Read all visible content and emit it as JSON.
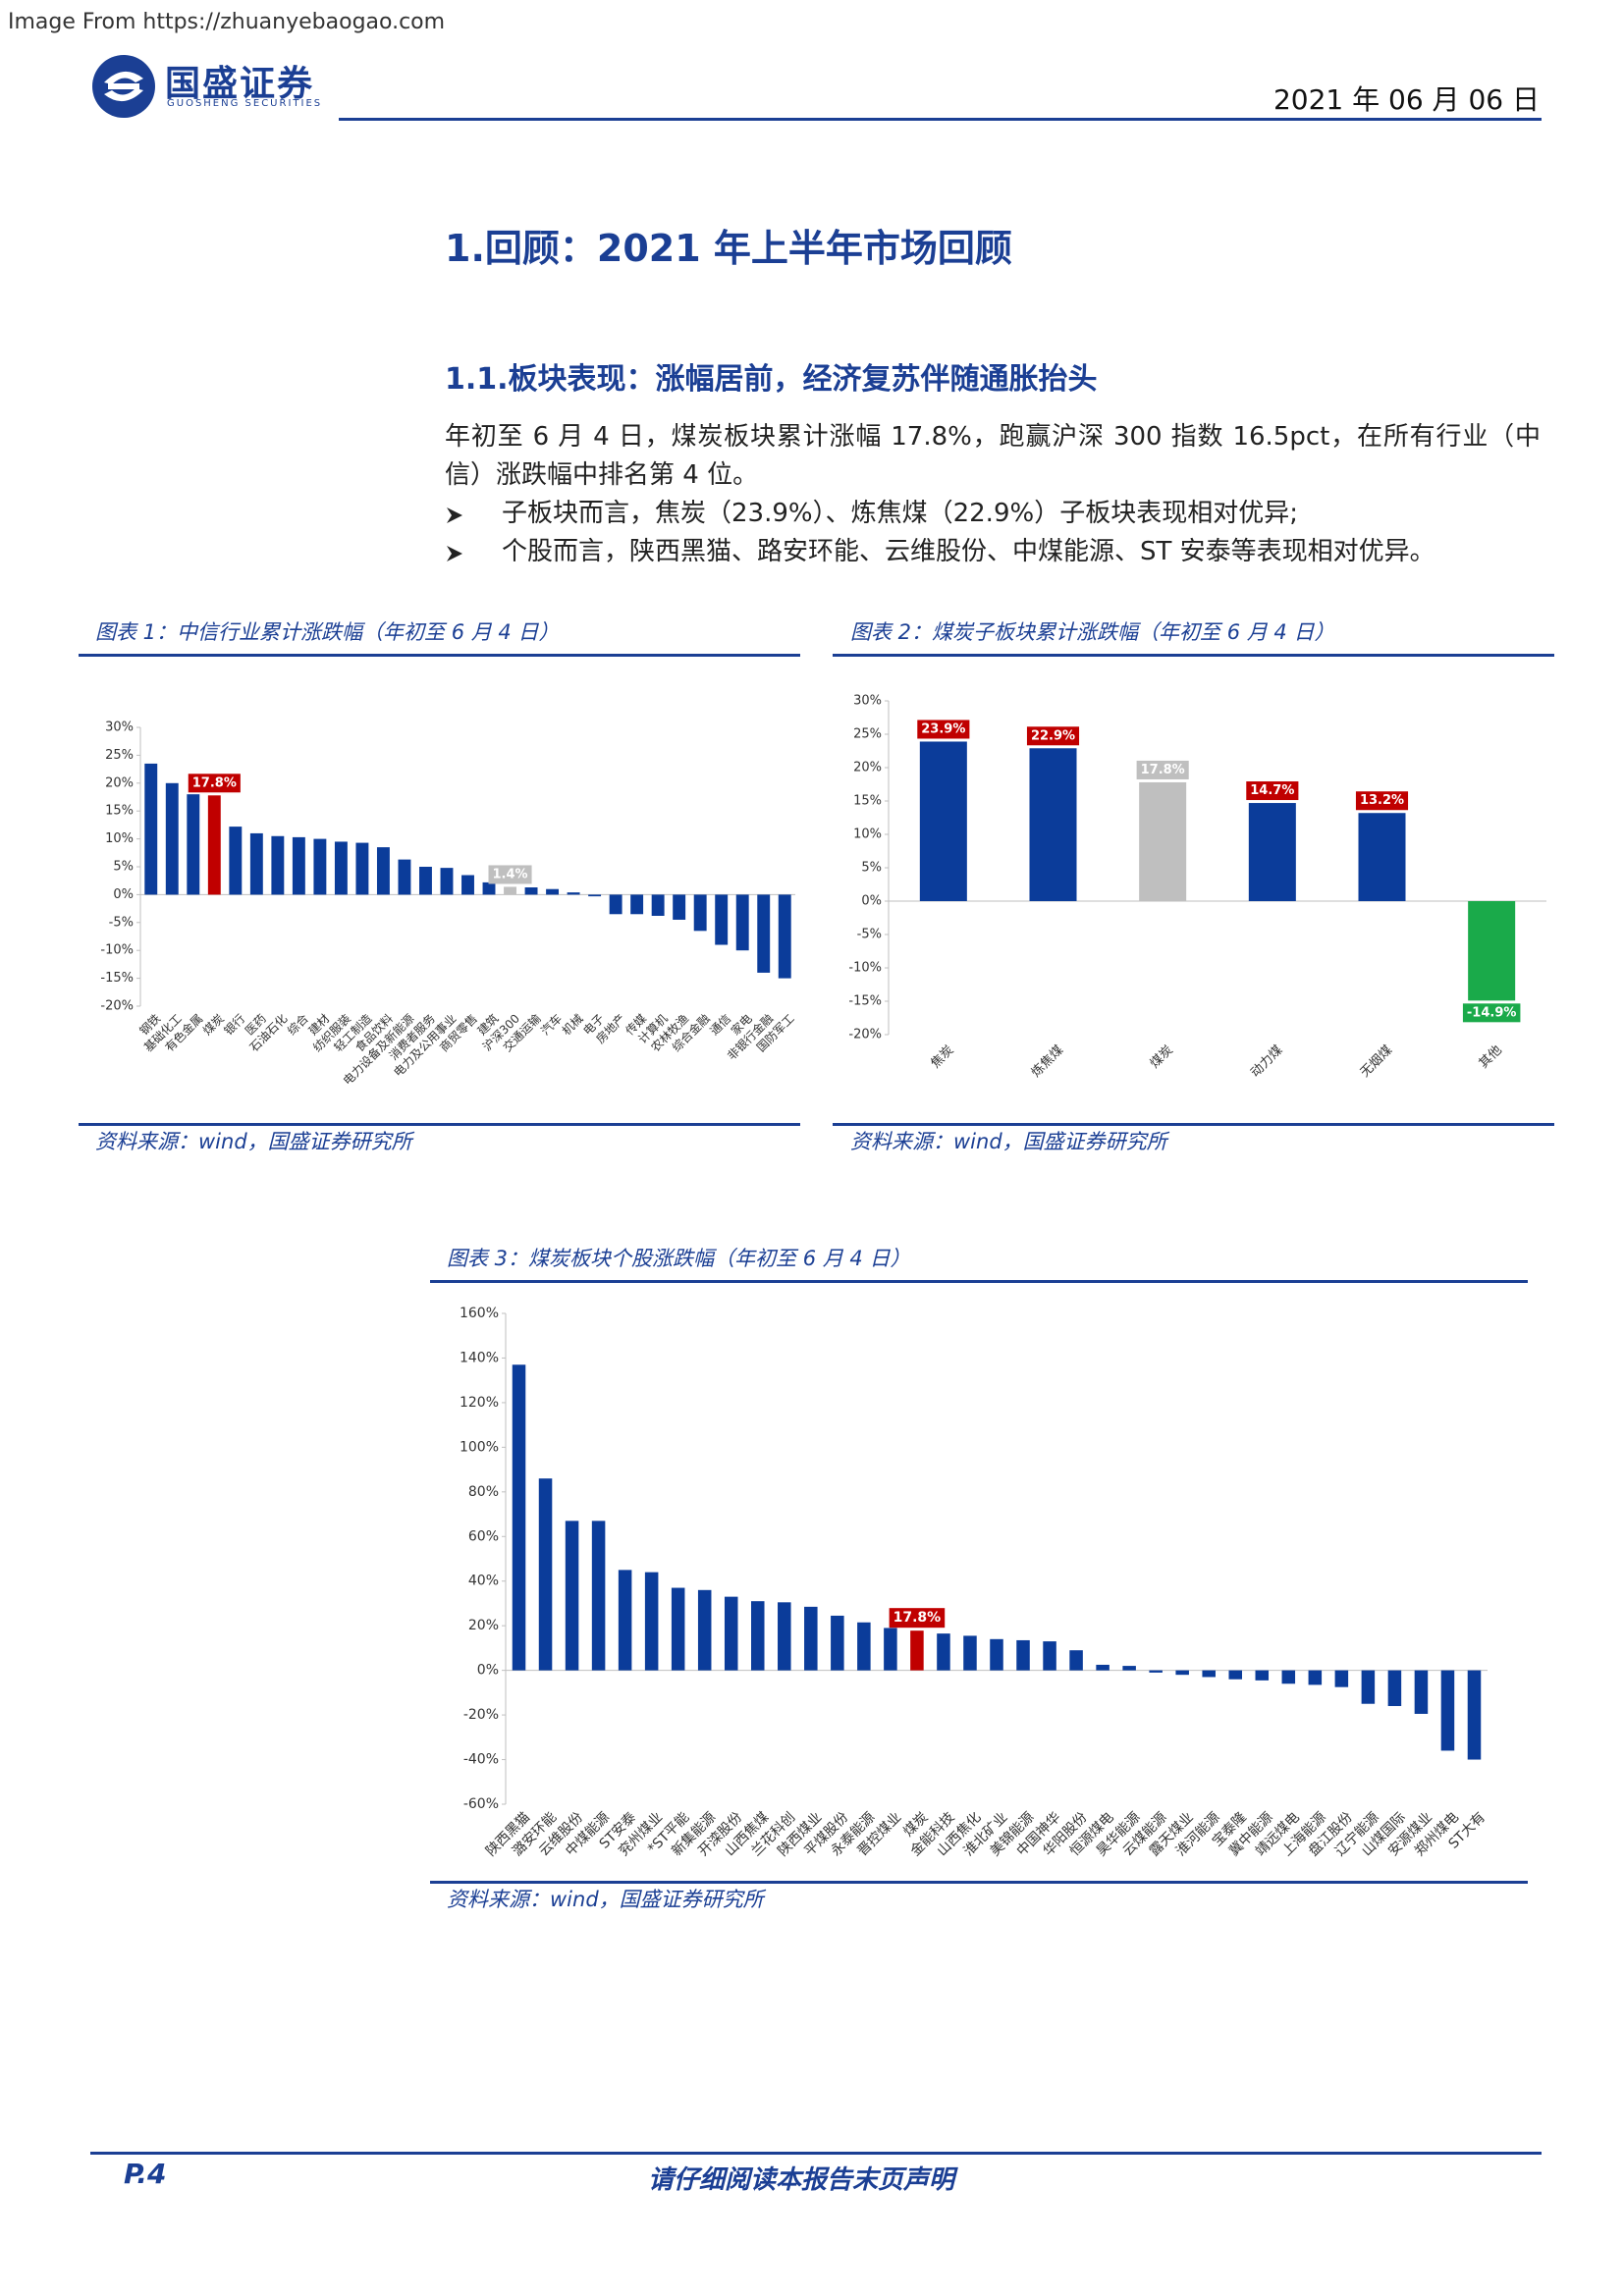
{
  "watermark": "Image From https://zhuanyebaogao.com",
  "header": {
    "logo_cn": "国盛证券",
    "logo_en": "GUOSHENG SECURITIES",
    "date": "2021 年 06 月 06 日"
  },
  "title": "1.回顾：2021 年上半年市场回顾",
  "section": "1.1.板块表现：涨幅居前，经济复苏伴随通胀抬头",
  "paragraph": "年初至 6 月 4 日，煤炭板块累计涨幅 17.8%，跑赢沪深 300 指数 16.5pct，在所有行业（中信）涨跌幅中排名第 4 位。",
  "bullets": [
    "子板块而言，焦炭（23.9%）、炼焦煤（22.9%）子板块表现相对优异;",
    "个股而言，陕西黑猫、路安环能、云维股份、中煤能源、ST 安泰等表现相对优异。"
  ],
  "chart_data": [
    {
      "type": "bar",
      "title": "图表 1：中信行业累计涨跌幅（年初至 6 月 4 日）",
      "source": "资料来源：wind，国盛证券研究所",
      "categories": [
        "钢铁",
        "基础化工",
        "有色金属",
        "煤炭",
        "银行",
        "医药",
        "石油石化",
        "综合",
        "建材",
        "纺织服装",
        "轻工制造",
        "食品饮料",
        "电力设备及新能源",
        "消费者服务",
        "电力及公用事业",
        "商贸零售",
        "建筑",
        "沪深300",
        "交通运输",
        "汽车",
        "机械",
        "电子",
        "房地产",
        "传媒",
        "计算机",
        "农林牧渔",
        "综合金融",
        "通信",
        "家电",
        "非银行金融",
        "国防军工"
      ],
      "values": [
        23.5,
        20,
        18,
        17.8,
        12.2,
        11,
        10.5,
        10.3,
        10,
        9.5,
        9.3,
        8.5,
        6.3,
        5,
        4.8,
        3.5,
        2.2,
        1.4,
        1.3,
        1,
        0.4,
        -0.3,
        -3.5,
        -3.5,
        -3.8,
        -4.5,
        -6.5,
        -9,
        -10,
        -14,
        -15
      ],
      "value_labels": [
        null,
        null,
        null,
        "17.8%",
        null,
        null,
        null,
        null,
        null,
        null,
        null,
        null,
        null,
        null,
        null,
        null,
        null,
        "1.4%",
        null,
        null,
        null,
        null,
        null,
        null,
        null,
        null,
        null,
        null,
        null,
        null,
        null
      ],
      "colors": [
        "#0b3c9a",
        "#0b3c9a",
        "#0b3c9a",
        "#c00000",
        "#0b3c9a",
        "#0b3c9a",
        "#0b3c9a",
        "#0b3c9a",
        "#0b3c9a",
        "#0b3c9a",
        "#0b3c9a",
        "#0b3c9a",
        "#0b3c9a",
        "#0b3c9a",
        "#0b3c9a",
        "#0b3c9a",
        "#0b3c9a",
        "#bfbfbf",
        "#0b3c9a",
        "#0b3c9a",
        "#0b3c9a",
        "#0b3c9a",
        "#0b3c9a",
        "#0b3c9a",
        "#0b3c9a",
        "#0b3c9a",
        "#0b3c9a",
        "#0b3c9a",
        "#0b3c9a",
        "#0b3c9a",
        "#0b3c9a"
      ],
      "label_colors": [
        null,
        null,
        null,
        "#c00000",
        null,
        null,
        null,
        null,
        null,
        null,
        null,
        null,
        null,
        null,
        null,
        null,
        null,
        "#bfbfbf",
        null,
        null,
        null,
        null,
        null,
        null,
        null,
        null,
        null,
        null,
        null,
        null,
        null
      ],
      "ylim": [
        -20,
        30
      ],
      "yticks": [
        {
          "value": -20,
          "label": "-20%"
        },
        {
          "value": -15,
          "label": "-15%"
        },
        {
          "value": -10,
          "label": "-10%"
        },
        {
          "value": -5,
          "label": "-5%"
        },
        {
          "value": 0,
          "label": "0%"
        },
        {
          "value": 5,
          "label": "5%"
        },
        {
          "value": 10,
          "label": "10%"
        },
        {
          "value": 15,
          "label": "15%"
        },
        {
          "value": 20,
          "label": "20%"
        },
        {
          "value": 25,
          "label": "25%"
        },
        {
          "value": 30,
          "label": "30%"
        }
      ],
      "grid": false
    },
    {
      "type": "bar",
      "title": "图表 2：煤炭子板块累计涨跌幅（年初至 6 月 4 日）",
      "source": "资料来源：wind，国盛证券研究所",
      "categories": [
        "焦炭",
        "炼焦煤",
        "煤炭",
        "动力煤",
        "无烟煤",
        "其他"
      ],
      "values": [
        23.9,
        22.9,
        17.8,
        14.7,
        13.2,
        -14.9
      ],
      "value_labels": [
        "23.9%",
        "22.9%",
        "17.8%",
        "14.7%",
        "13.2%",
        "-14.9%"
      ],
      "colors": [
        "#0b3c9a",
        "#0b3c9a",
        "#bfbfbf",
        "#0b3c9a",
        "#0b3c9a",
        "#1aaa4a"
      ],
      "label_colors": [
        "#c00000",
        "#c00000",
        "#bfbfbf",
        "#c00000",
        "#c00000",
        "#1aaa4a"
      ],
      "ylim": [
        -20,
        30
      ],
      "yticks": [
        {
          "value": -20,
          "label": "-20%"
        },
        {
          "value": -15,
          "label": "-15%"
        },
        {
          "value": -10,
          "label": "-10%"
        },
        {
          "value": -5,
          "label": "-5%"
        },
        {
          "value": 0,
          "label": "0%"
        },
        {
          "value": 5,
          "label": "5%"
        },
        {
          "value": 10,
          "label": "10%"
        },
        {
          "value": 15,
          "label": "15%"
        },
        {
          "value": 20,
          "label": "20%"
        },
        {
          "value": 25,
          "label": "25%"
        },
        {
          "value": 30,
          "label": "30%"
        }
      ],
      "grid": false
    },
    {
      "type": "bar",
      "title": "图表 3：煤炭板块个股涨跌幅（年初至 6 月 4 日）",
      "source": "资料来源：wind，国盛证券研究所",
      "categories": [
        "陕西黑猫",
        "潞安环能",
        "云维股份",
        "中煤能源",
        "ST安泰",
        "兖州煤业",
        "*ST平能",
        "新集能源",
        "开滦股份",
        "山西焦煤",
        "兰花科创",
        "陕西煤业",
        "平煤股份",
        "永泰能源",
        "晋控煤业",
        "煤炭",
        "金能科技",
        "山西焦化",
        "淮北矿业",
        "美锦能源",
        "中国神华",
        "华阳股份",
        "恒源煤电",
        "昊华能源",
        "云煤能源",
        "露天煤业",
        "淮河能源",
        "宝泰隆",
        "冀中能源",
        "靖远煤电",
        "上海能源",
        "盘江股份",
        "辽宁能源",
        "山煤国际",
        "安源煤业",
        "郑州煤电",
        "ST大有"
      ],
      "values": [
        137,
        86,
        67,
        67,
        45,
        44,
        37,
        36,
        33,
        31,
        30.5,
        28.5,
        24.5,
        21.5,
        19,
        17.8,
        16.5,
        15.5,
        14,
        13.5,
        13,
        9,
        2.5,
        2,
        -1,
        -2,
        -3,
        -4,
        -4.5,
        -6,
        -6.5,
        -7.5,
        -15,
        -16,
        -19.5,
        -36,
        -40
      ],
      "value_labels": [
        null,
        null,
        null,
        null,
        null,
        null,
        null,
        null,
        null,
        null,
        null,
        null,
        null,
        null,
        null,
        "17.8%",
        null,
        null,
        null,
        null,
        null,
        null,
        null,
        null,
        null,
        null,
        null,
        null,
        null,
        null,
        null,
        null,
        null,
        null,
        null,
        null,
        null
      ],
      "colors": [
        "#0b3c9a",
        "#0b3c9a",
        "#0b3c9a",
        "#0b3c9a",
        "#0b3c9a",
        "#0b3c9a",
        "#0b3c9a",
        "#0b3c9a",
        "#0b3c9a",
        "#0b3c9a",
        "#0b3c9a",
        "#0b3c9a",
        "#0b3c9a",
        "#0b3c9a",
        "#0b3c9a",
        "#c00000",
        "#0b3c9a",
        "#0b3c9a",
        "#0b3c9a",
        "#0b3c9a",
        "#0b3c9a",
        "#0b3c9a",
        "#0b3c9a",
        "#0b3c9a",
        "#0b3c9a",
        "#0b3c9a",
        "#0b3c9a",
        "#0b3c9a",
        "#0b3c9a",
        "#0b3c9a",
        "#0b3c9a",
        "#0b3c9a",
        "#0b3c9a",
        "#0b3c9a",
        "#0b3c9a",
        "#0b3c9a",
        "#0b3c9a"
      ],
      "label_colors": [
        null,
        null,
        null,
        null,
        null,
        null,
        null,
        null,
        null,
        null,
        null,
        null,
        null,
        null,
        null,
        "#c00000",
        null,
        null,
        null,
        null,
        null,
        null,
        null,
        null,
        null,
        null,
        null,
        null,
        null,
        null,
        null,
        null,
        null,
        null,
        null,
        null,
        null
      ],
      "ylim": [
        -60,
        160
      ],
      "yticks": [
        {
          "value": -60,
          "label": "-60%"
        },
        {
          "value": -40,
          "label": "-40%"
        },
        {
          "value": -20,
          "label": "-20%"
        },
        {
          "value": 0,
          "label": "0%"
        },
        {
          "value": 20,
          "label": "20%"
        },
        {
          "value": 40,
          "label": "40%"
        },
        {
          "value": 60,
          "label": "60%"
        },
        {
          "value": 80,
          "label": "80%"
        },
        {
          "value": 100,
          "label": "100%"
        },
        {
          "value": 120,
          "label": "120%"
        },
        {
          "value": 140,
          "label": "140%"
        },
        {
          "value": 160,
          "label": "160%"
        }
      ],
      "grid": false
    }
  ],
  "footer": {
    "page": "P.4",
    "notice": "请仔细阅读本报告末页声明"
  }
}
